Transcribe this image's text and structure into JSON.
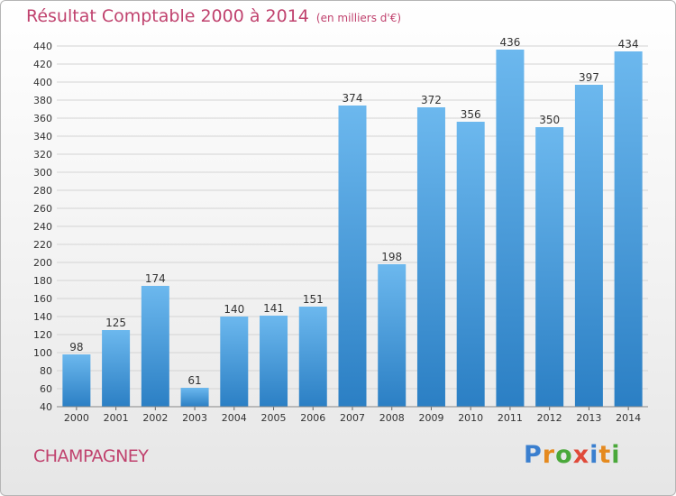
{
  "header": {
    "title": "Résultat Comptable 2000 à 2014",
    "unit": "(en milliers d'€)"
  },
  "footer": {
    "commune": "CHAMPAGNEY",
    "logo_text": "Proxiti"
  },
  "colors": {
    "title": "#c0426e",
    "bar_light": "#6cb8ee",
    "bar_dark": "#2b7fc4",
    "grid": "#d4d4d4",
    "text": "#333333"
  },
  "chart_data": {
    "type": "bar",
    "title": "Résultat Comptable 2000 à 2014",
    "subtitle": "(en milliers d'€)",
    "xlabel": "",
    "ylabel": "",
    "categories": [
      "2000",
      "2001",
      "2002",
      "2003",
      "2004",
      "2005",
      "2006",
      "2007",
      "2008",
      "2009",
      "2010",
      "2011",
      "2012",
      "2013",
      "2014"
    ],
    "values": [
      98,
      125,
      174,
      61,
      140,
      141,
      151,
      374,
      198,
      372,
      356,
      436,
      350,
      397,
      434
    ],
    "ylim": [
      40,
      440
    ],
    "yticks": [
      40,
      60,
      80,
      100,
      120,
      140,
      160,
      180,
      200,
      220,
      240,
      260,
      280,
      300,
      320,
      340,
      360,
      380,
      400,
      420,
      440
    ],
    "grid": true,
    "data_labels": true
  }
}
